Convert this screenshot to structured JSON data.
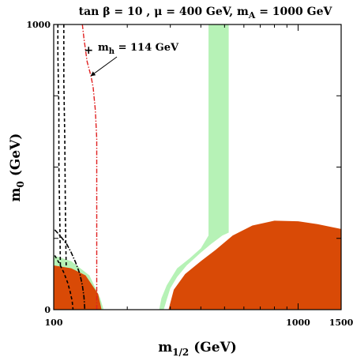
{
  "chart_data": {
    "type": "contour",
    "title": {
      "prefix": "tan ",
      "beta": "β",
      "tanb": " = 10 ,  ",
      "mu": "μ",
      "mu_val": " = 400 GeV,  m",
      "mA_sub": "A",
      "mA_val": " = 1000 GeV"
    },
    "xlabel": {
      "main": "m",
      "sub": "1/2",
      "unit": " (GeV)"
    },
    "ylabel": {
      "main": "m",
      "sub": "0",
      "unit": " (GeV)"
    },
    "x_scale": "log",
    "xlim": [
      100,
      1500
    ],
    "ylim": [
      0,
      1000
    ],
    "x_tick_labels": [
      {
        "value": 100,
        "label": "100"
      },
      {
        "value": 1000,
        "label": "1000"
      },
      {
        "value": 1500,
        "label": "1500"
      }
    ],
    "x_minor_ticks": [
      200,
      300,
      400,
      500,
      600,
      700,
      800,
      900
    ],
    "y_tick_labels": [
      {
        "value": 0,
        "label": "0"
      },
      {
        "value": 1000,
        "label": "1000"
      }
    ],
    "y_minor_ticks": [
      250,
      500,
      750
    ],
    "annotation": {
      "main": "m",
      "sub": "h",
      "text": " = 114 GeV",
      "marker_point": [
        139,
        912
      ],
      "arrow_tip": [
        142,
        820
      ]
    },
    "colors": {
      "excluded": "#d94a06",
      "cosmo": "#b6f2b6",
      "higgs": "#e02020",
      "black": "#000000"
    },
    "regions": [
      {
        "kind": "cosmo",
        "points": [
          [
            100,
            0
          ],
          [
            100,
            190
          ],
          [
            118,
            170
          ],
          [
            140,
            120
          ],
          [
            155,
            40
          ],
          [
            160,
            0
          ]
        ]
      },
      {
        "kind": "cosmo",
        "points": [
          [
            282,
            0
          ],
          [
            290,
            35
          ],
          [
            300,
            75
          ],
          [
            320,
            115
          ],
          [
            350,
            155
          ],
          [
            400,
            200
          ],
          [
            440,
            230
          ],
          [
            490,
            260
          ],
          [
            520,
            270
          ],
          [
            520,
            1000
          ],
          [
            430,
            1000
          ],
          [
            430,
            260
          ],
          [
            400,
            215
          ],
          [
            360,
            180
          ],
          [
            320,
            145
          ],
          [
            290,
            85
          ],
          [
            276,
            40
          ],
          [
            270,
            0
          ]
        ]
      },
      {
        "kind": "excluded",
        "points": [
          [
            100,
            0
          ],
          [
            100,
            155
          ],
          [
            118,
            145
          ],
          [
            135,
            120
          ],
          [
            152,
            55
          ],
          [
            157,
            0
          ]
        ]
      },
      {
        "kind": "excluded",
        "points": [
          [
            295,
            0
          ],
          [
            310,
            70
          ],
          [
            345,
            125
          ],
          [
            400,
            170
          ],
          [
            460,
            210
          ],
          [
            540,
            260
          ],
          [
            650,
            295
          ],
          [
            800,
            312
          ],
          [
            1000,
            310
          ],
          [
            1200,
            300
          ],
          [
            1400,
            288
          ],
          [
            1500,
            283
          ],
          [
            1500,
            0
          ]
        ]
      }
    ],
    "lines": [
      {
        "kind": "black-dashed",
        "style": "dash",
        "points": [
          [
            104,
            1000
          ],
          [
            104,
            900
          ],
          [
            105,
            700
          ],
          [
            105,
            500
          ],
          [
            106,
            300
          ],
          [
            106.5,
            150
          ]
        ]
      },
      {
        "kind": "black-dashed",
        "style": "dash",
        "points": [
          [
            110,
            1000
          ],
          [
            110,
            800
          ],
          [
            111,
            600
          ],
          [
            111.5,
            400
          ],
          [
            112,
            250
          ],
          [
            112.5,
            150
          ]
        ]
      },
      {
        "kind": "black-dashdot",
        "style": "dashdot",
        "points": [
          [
            101,
            280
          ],
          [
            106,
            260
          ],
          [
            113,
            230
          ],
          [
            118,
            200
          ],
          [
            123,
            165
          ],
          [
            128,
            125
          ],
          [
            131,
            85
          ],
          [
            133,
            45
          ],
          [
            134,
            0
          ]
        ]
      },
      {
        "kind": "black-dashed",
        "style": "dash",
        "points": [
          [
            101,
            190
          ],
          [
            105,
            165
          ],
          [
            110,
            130
          ],
          [
            114,
            95
          ],
          [
            117,
            60
          ],
          [
            119,
            30
          ],
          [
            120,
            0
          ]
        ]
      },
      {
        "kind": "higgs",
        "style": "dashdot",
        "points": [
          [
            131,
            1000
          ],
          [
            133,
            950
          ],
          [
            137,
            870
          ],
          [
            142,
            820
          ],
          [
            145,
            780
          ],
          [
            148,
            700
          ],
          [
            150,
            600
          ],
          [
            150,
            400
          ],
          [
            150,
            200
          ],
          [
            150,
            0
          ]
        ]
      }
    ]
  }
}
